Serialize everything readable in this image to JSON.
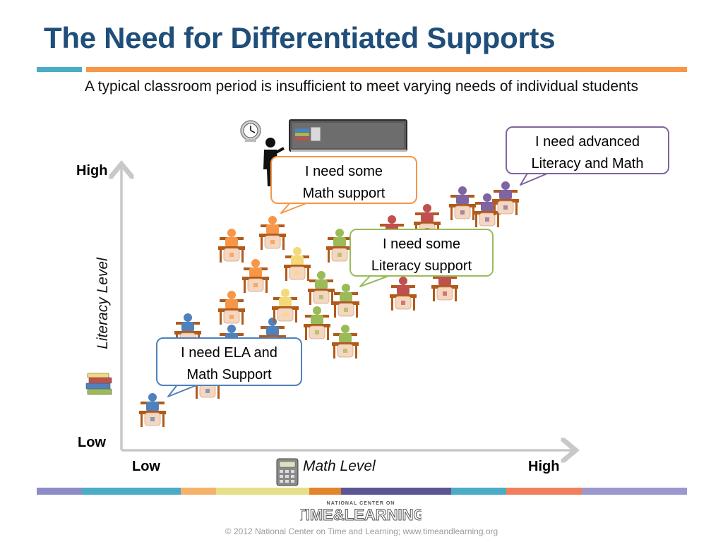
{
  "slide": {
    "title": "The Need for Differentiated Supports",
    "subtitle": "A typical classroom period is insufficient to meet varying needs of individual students"
  },
  "axes": {
    "y_high": "High",
    "y_low": "Low",
    "y_title": "Literacy  Level",
    "x_low": "Low",
    "x_high": "High",
    "x_title": "Math Level"
  },
  "bubbles": {
    "advanced": "I need advanced\nLiteracy and Math",
    "math_support": "I need some\nMath support",
    "literacy_support": "I need some\nLiteracy support",
    "ela_math_support": "I need ELA and\nMath Support"
  },
  "colors": {
    "title": "#1f4e79",
    "accent_blue": "#4bacc6",
    "accent_orange": "#f79646",
    "student_blue": "#4f81bd",
    "student_orange": "#f79646",
    "student_yellow": "#f4d97a",
    "student_green": "#9bbb59",
    "student_red": "#c0504d",
    "student_purple": "#8064a2",
    "desk": "#b15a1a"
  },
  "icons": [
    "clock-icon",
    "teacher-icon",
    "whiteboard-icon",
    "books-icon",
    "calculator-icon"
  ],
  "logo": {
    "line1": "NATIONAL  CENTER ON",
    "line2": "TIME&LEARNING"
  },
  "footer": "© 2012 National Center on Time and Learning; www.timeandlearning.org"
}
